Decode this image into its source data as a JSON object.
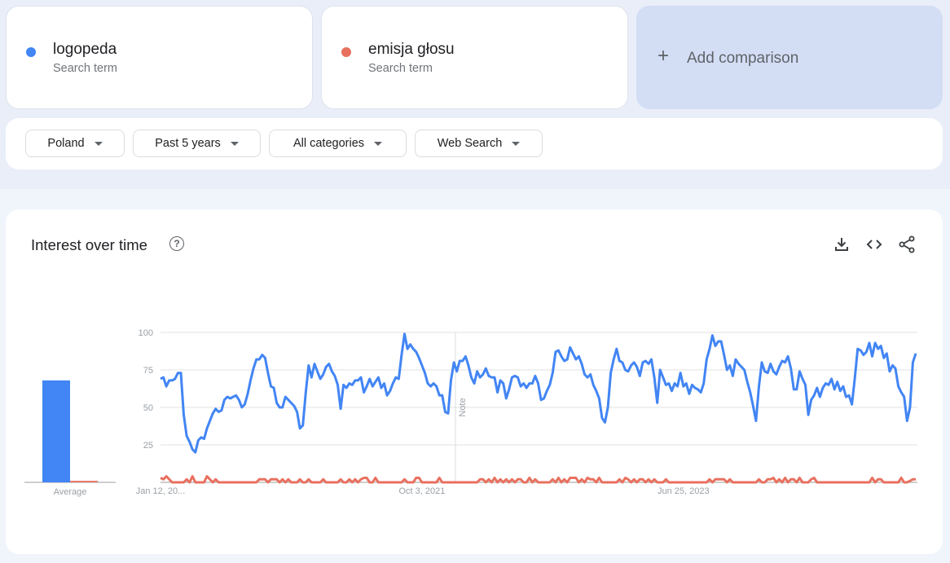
{
  "terms": [
    {
      "name": "logopeda",
      "subtitle": "Search term",
      "color": "#4285f4"
    },
    {
      "name": "emisja głosu",
      "subtitle": "Search term",
      "color": "#e8705f"
    }
  ],
  "add_comparison": {
    "icon": "plus-icon",
    "label": "Add comparison"
  },
  "filters": [
    {
      "label": "Poland"
    },
    {
      "label": "Past 5 years"
    },
    {
      "label": "All categories"
    },
    {
      "label": "Web Search"
    }
  ],
  "panel": {
    "title": "Interest over time",
    "help_icon": "help-circle-icon",
    "actions": [
      "download-icon",
      "embed-code-icon",
      "share-icon"
    ]
  },
  "chart_data": {
    "type": "line",
    "y_ticks": [
      25,
      50,
      75,
      100
    ],
    "ylim": [
      0,
      100
    ],
    "grid": true,
    "x_start": "2020-01-12",
    "x_interval": "weekly",
    "x_ticks": [
      {
        "date": "2020-01-12",
        "label": "Jan 12, 20..."
      },
      {
        "date": "2021-10-03",
        "label": "Oct 3, 2021"
      },
      {
        "date": "2023-06-25",
        "label": "Jun 25, 2023"
      }
    ],
    "note_label": "Note",
    "average_label": "Average",
    "averages": [
      68,
      1
    ],
    "series": [
      {
        "name": "logopeda",
        "color": "#4285f4",
        "values": [
          69,
          70,
          64,
          68,
          68,
          69,
          73,
          73,
          45,
          31,
          27,
          22,
          20,
          28,
          30,
          29,
          36,
          41,
          46,
          49,
          47,
          48,
          55,
          57,
          56,
          57,
          58,
          55,
          50,
          52,
          59,
          68,
          76,
          82,
          82,
          85,
          83,
          73,
          64,
          63,
          53,
          50,
          50,
          57,
          55,
          53,
          51,
          47,
          36,
          38,
          60,
          78,
          70,
          79,
          74,
          69,
          72,
          77,
          79,
          74,
          71,
          65,
          49,
          65,
          63,
          66,
          65,
          68,
          68,
          70,
          60,
          64,
          69,
          64,
          67,
          70,
          63,
          66,
          58,
          61,
          66,
          70,
          69,
          85,
          99,
          89,
          92,
          89,
          87,
          83,
          78,
          73,
          66,
          64,
          66,
          64,
          58,
          58,
          47,
          46,
          68,
          80,
          74,
          81,
          81,
          84,
          78,
          70,
          66,
          74,
          70,
          72,
          76,
          71,
          70,
          70,
          60,
          68,
          66,
          56,
          62,
          70,
          71,
          70,
          64,
          66,
          63,
          66,
          66,
          71,
          66,
          55,
          56,
          61,
          65,
          73,
          87,
          88,
          84,
          81,
          82,
          90,
          86,
          82,
          84,
          79,
          72,
          70,
          72,
          65,
          61,
          56,
          43,
          40,
          50,
          73,
          82,
          89,
          81,
          80,
          75,
          74,
          78,
          80,
          77,
          71,
          80,
          81,
          79,
          82,
          70,
          53,
          75,
          70,
          65,
          66,
          61,
          66,
          64,
          73,
          64,
          66,
          59,
          65,
          63,
          62,
          60,
          66,
          82,
          89,
          98,
          91,
          94,
          94,
          85,
          75,
          78,
          71,
          82,
          79,
          77,
          75,
          67,
          60,
          51,
          41,
          64,
          80,
          74,
          73,
          79,
          74,
          72,
          77,
          81,
          80,
          84,
          76,
          62,
          62,
          74,
          69,
          65,
          45,
          55,
          58,
          63,
          57,
          63,
          66,
          65,
          69,
          62,
          67,
          61,
          64,
          57,
          58,
          52,
          69,
          89,
          88,
          85,
          87,
          93,
          84,
          93,
          89,
          91,
          83,
          86,
          74,
          78,
          76,
          64,
          60,
          57,
          41,
          50,
          80,
          86
        ]
      },
      {
        "name": "emisja głosu",
        "color": "#e8705f",
        "values": [
          3,
          2,
          4,
          2,
          0,
          0,
          0,
          0,
          0,
          2,
          0,
          4,
          0,
          0,
          0,
          0,
          4,
          2,
          0,
          2,
          0,
          0,
          0,
          0,
          0,
          0,
          0,
          0,
          0,
          0,
          0,
          0,
          0,
          0,
          2,
          2,
          2,
          0,
          2,
          2,
          2,
          0,
          2,
          0,
          2,
          0,
          0,
          0,
          2,
          0,
          0,
          2,
          0,
          0,
          0,
          0,
          2,
          0,
          0,
          0,
          0,
          0,
          2,
          0,
          0,
          2,
          0,
          2,
          0,
          2,
          3,
          3,
          0,
          0,
          3,
          0,
          0,
          0,
          0,
          0,
          0,
          0,
          0,
          0,
          2,
          0,
          0,
          0,
          3,
          3,
          0,
          0,
          0,
          0,
          0,
          0,
          3,
          0,
          0,
          0,
          0,
          0,
          0,
          0,
          0,
          0,
          0,
          0,
          0,
          0,
          2,
          2,
          0,
          2,
          0,
          3,
          0,
          2,
          0,
          2,
          0,
          2,
          0,
          2,
          2,
          0,
          0,
          3,
          0,
          2,
          0,
          0,
          0,
          0,
          0,
          2,
          0,
          3,
          0,
          2,
          0,
          3,
          3,
          3,
          0,
          2,
          0,
          3,
          2,
          2,
          0,
          3,
          0,
          0,
          0,
          0,
          0,
          0,
          2,
          0,
          3,
          2,
          0,
          2,
          0,
          2,
          2,
          0,
          2,
          0,
          2,
          0,
          0,
          0,
          2,
          0,
          0,
          0,
          0,
          0,
          0,
          0,
          0,
          0,
          0,
          0,
          0,
          0,
          0,
          2,
          0,
          2,
          2,
          2,
          2,
          0,
          2,
          0,
          0,
          0,
          0,
          0,
          0,
          0,
          0,
          0,
          2,
          0,
          0,
          2,
          2,
          3,
          0,
          2,
          0,
          3,
          0,
          2,
          2,
          0,
          3,
          0,
          0,
          0,
          2,
          3,
          0,
          0,
          0,
          0,
          0,
          0,
          0,
          0,
          0,
          0,
          0,
          0,
          0,
          0,
          0,
          0,
          0,
          0,
          0,
          3,
          0,
          2,
          2,
          0,
          0,
          0,
          0,
          0,
          0,
          3,
          0,
          0,
          1,
          2,
          2
        ]
      }
    ]
  }
}
